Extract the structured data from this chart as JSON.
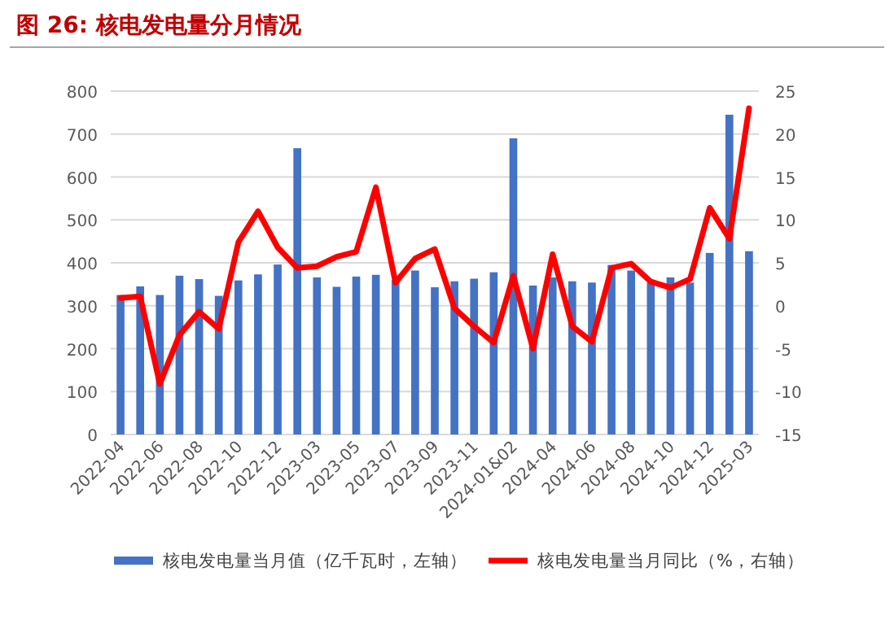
{
  "chart_data": {
    "type": "bar",
    "title": "图 26:  核电发电量分月情况",
    "categories": [
      "2022-04",
      null,
      "2022-06",
      null,
      "2022-08",
      null,
      "2022-10",
      null,
      "2022-12",
      null,
      "2023-03",
      null,
      "2023-05",
      null,
      "2023-07",
      null,
      "2023-09",
      null,
      "2023-11",
      null,
      "2024-01&02",
      null,
      "2024-04",
      null,
      "2024-06",
      null,
      "2024-08",
      null,
      "2024-10",
      null,
      "2024-12",
      null,
      "2025-03"
    ],
    "series": [
      {
        "name": "核电发电量当月值（亿千瓦时，左轴）",
        "color": "#4472c4",
        "values": [
          325,
          345,
          325,
          370,
          362,
          323,
          359,
          373,
          396,
          667,
          366,
          344,
          368,
          372,
          360,
          382,
          343,
          357,
          363,
          378,
          690,
          347,
          366,
          357,
          354,
          395,
          382,
          354,
          366,
          354,
          423,
          745,
          427
        ]
      },
      {
        "name": "核电发电量当月同比（%，右轴）",
        "color": "#ff0000",
        "type": "line",
        "axis": "y2",
        "values": [
          0.9,
          1.1,
          -9.1,
          -3.4,
          -0.7,
          -2.7,
          7.4,
          11.0,
          6.8,
          4.4,
          4.6,
          5.7,
          6.3,
          13.8,
          2.7,
          5.5,
          6.6,
          -0.3,
          -2.4,
          -4.3,
          3.5,
          -5.0,
          6.0,
          -2.4,
          -4.2,
          4.4,
          4.9,
          2.8,
          2.1,
          3.1,
          11.4,
          7.8,
          23.0
        ]
      }
    ],
    "ylim": [
      0,
      800
    ],
    "yticks": [
      0,
      100,
      200,
      300,
      400,
      500,
      600,
      700,
      800
    ],
    "y2lim": [
      -15,
      25
    ],
    "y2ticks": [
      -15,
      -10,
      -5,
      0,
      5,
      10,
      15,
      20,
      25
    ],
    "grid": "y",
    "legend": "bottom"
  }
}
